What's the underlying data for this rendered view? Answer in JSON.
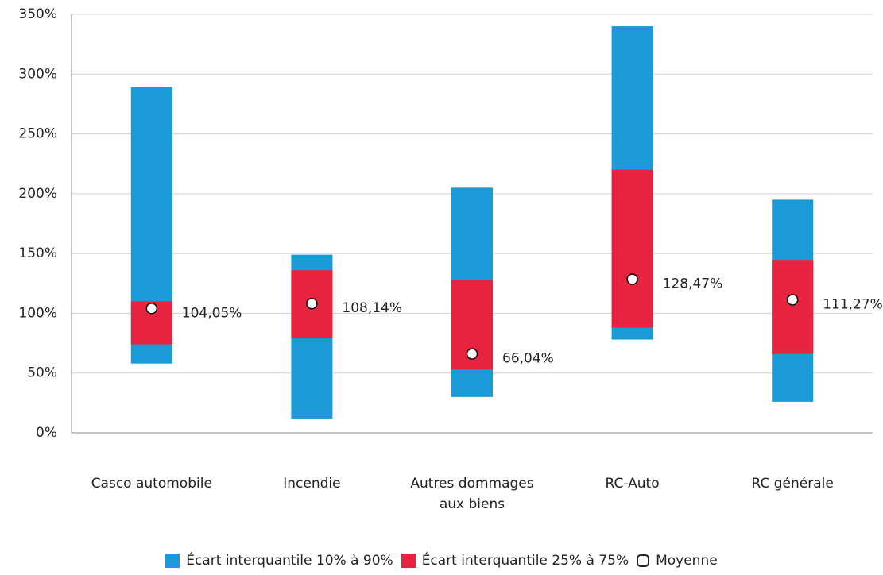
{
  "chart_data": {
    "type": "range-bar",
    "categories": [
      "Casco automobile",
      "Incendie",
      "Autres dommages aux biens",
      "RC-Auto",
      "RC générale"
    ],
    "series": [
      {
        "name": "Écart interquantile 10% à 90%",
        "color": "#1a9ad6",
        "low": [
          58,
          12,
          30,
          78,
          26
        ],
        "high": [
          289,
          149,
          205,
          340,
          195
        ]
      },
      {
        "name": "Écart interquantile 25% à 75%",
        "color": "#e8233f",
        "low": [
          74,
          79,
          53,
          88,
          66
        ],
        "high": [
          110,
          136,
          128,
          220,
          144
        ]
      },
      {
        "name": "Moyenne",
        "color": "#ffffff",
        "values": [
          104.05,
          108.14,
          66.04,
          128.47,
          111.27
        ],
        "value_labels": [
          "104,05%",
          "108,14%",
          "66,04%",
          "128,47%",
          "111,27%"
        ]
      }
    ],
    "ylim": [
      0,
      350
    ],
    "yticks": [
      {
        "value": 0,
        "label": "0%"
      },
      {
        "value": 50,
        "label": "50%"
      },
      {
        "value": 100,
        "label": "100%"
      },
      {
        "value": 150,
        "label": "150%"
      },
      {
        "value": 200,
        "label": "200%"
      },
      {
        "value": 250,
        "label": "250%"
      },
      {
        "value": 300,
        "label": "300%"
      },
      {
        "value": 350,
        "label": "350%"
      }
    ],
    "grid": true,
    "legend": "bottom"
  }
}
